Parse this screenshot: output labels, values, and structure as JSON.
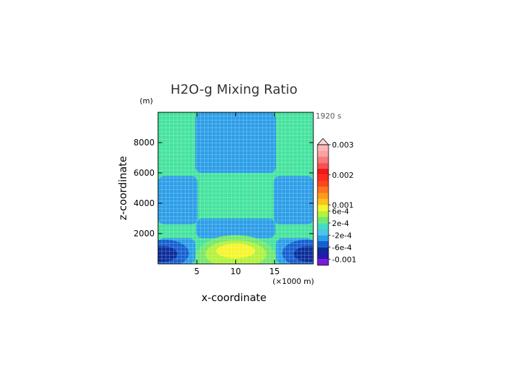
{
  "chart_data": {
    "type": "heatmap",
    "title": "H2O-g Mixing Ratio",
    "y_unit_label": "(m)",
    "time_label": "1920 s",
    "xlabel": "x-coordinate",
    "x_unit_label": "(×1000 m)",
    "ylabel": "z-coordinate",
    "xlim": [
      0,
      20
    ],
    "ylim": [
      0,
      10000
    ],
    "x_ticks": [
      {
        "value": 5,
        "label": "5"
      },
      {
        "value": 10,
        "label": "10"
      },
      {
        "value": 15,
        "label": "15"
      }
    ],
    "y_ticks": [
      {
        "value": 2000,
        "label": "2000"
      },
      {
        "value": 4000,
        "label": "4000"
      },
      {
        "value": 6000,
        "label": "6000"
      },
      {
        "value": 8000,
        "label": "8000"
      }
    ],
    "grid": true,
    "background_value": 0.0001,
    "regions": [
      {
        "shape": "rect",
        "name": "upper-central-column",
        "x": [
          4.8,
          15.2
        ],
        "z": [
          6000,
          10000
        ],
        "value": -0.0002,
        "color": "#2c9ee8"
      },
      {
        "shape": "rect",
        "name": "mid-left-block",
        "x": [
          0,
          5.1
        ],
        "z": [
          2600,
          5800
        ],
        "value": -0.0002,
        "color": "#2c9ee8"
      },
      {
        "shape": "rect",
        "name": "mid-right-block",
        "x": [
          14.9,
          20
        ],
        "z": [
          2600,
          5800
        ],
        "value": -0.0002,
        "color": "#2c9ee8"
      },
      {
        "shape": "rect",
        "name": "low-central-block",
        "x": [
          4.9,
          15.1
        ],
        "z": [
          1700,
          3000
        ],
        "value": -0.0002,
        "color": "#2c9ee8"
      },
      {
        "shape": "rect",
        "name": "low-left-corner",
        "x": [
          0,
          4.8
        ],
        "z": [
          0,
          1700
        ],
        "value": -0.0002,
        "color": "#2c9ee8"
      },
      {
        "shape": "rect",
        "name": "low-right-corner",
        "x": [
          15.2,
          20
        ],
        "z": [
          0,
          1700
        ],
        "value": -0.0002,
        "color": "#2c9ee8"
      },
      {
        "shape": "ellipse",
        "name": "left-minimum-outer",
        "cx": 0.8,
        "cz": 700,
        "rx": 3.2,
        "rz": 900,
        "value": -0.0004,
        "color": "#1560d0"
      },
      {
        "shape": "ellipse",
        "name": "left-minimum-inner",
        "cx": 0.6,
        "cz": 650,
        "rx": 1.9,
        "rz": 520,
        "value": -0.0006,
        "color": "#0b2d9a"
      },
      {
        "shape": "ellipse",
        "name": "right-minimum-outer",
        "cx": 19.2,
        "cz": 700,
        "rx": 3.2,
        "rz": 900,
        "value": -0.0004,
        "color": "#1560d0"
      },
      {
        "shape": "ellipse",
        "name": "right-minimum-inner",
        "cx": 19.4,
        "cz": 650,
        "rx": 1.9,
        "rz": 520,
        "value": -0.0006,
        "color": "#0b2d9a"
      },
      {
        "shape": "ellipse",
        "name": "central-maximum-outer",
        "cx": 10,
        "cz": 450,
        "rx": 5.1,
        "rz": 1450,
        "value": 0.0002,
        "color": "#73e86e"
      },
      {
        "shape": "ellipse",
        "name": "central-maximum-middle",
        "cx": 10,
        "cz": 650,
        "rx": 3.9,
        "rz": 900,
        "value": 0.0004,
        "color": "#b2f23c"
      },
      {
        "shape": "ellipse",
        "name": "central-maximum-inner",
        "cx": 10,
        "cz": 850,
        "rx": 2.5,
        "rz": 480,
        "value": 0.0006,
        "color": "#f6f52c"
      }
    ],
    "colorbar": {
      "triangle_color": "#fcd8d8",
      "bins": [
        {
          "color": "#7a1ad8"
        },
        {
          "color": "#2a16b0"
        },
        {
          "color": "#0b2d9a"
        },
        {
          "color": "#1560d0"
        },
        {
          "color": "#2c9ee8"
        },
        {
          "color": "#4cc6e8"
        },
        {
          "color": "#44ddc0"
        },
        {
          "color": "#73e86e"
        },
        {
          "color": "#b2f23c"
        },
        {
          "color": "#f6f52c"
        },
        {
          "color": "#fcc21d"
        },
        {
          "color": "#fc9a1c"
        },
        {
          "color": "#fc7420"
        },
        {
          "color": "#fc4818"
        },
        {
          "color": "#fc2a20"
        },
        {
          "color": "#f01818"
        },
        {
          "color": "#f85050"
        },
        {
          "color": "#f87a7a"
        },
        {
          "color": "#f8a2a2"
        },
        {
          "color": "#fcb6b6"
        }
      ],
      "labels": [
        {
          "text": "0.003",
          "boundary": 20
        },
        {
          "text": "0.002",
          "boundary": 15
        },
        {
          "text": "0.001",
          "boundary": 10
        },
        {
          "text": "6e-4",
          "boundary": 9
        },
        {
          "text": "2e-4",
          "boundary": 7
        },
        {
          "text": "-2e-4",
          "boundary": 5
        },
        {
          "text": "-6e-4",
          "boundary": 3
        },
        {
          "text": "-0.001",
          "boundary": 1
        }
      ]
    },
    "colors": {
      "background_fill": "#44e39e",
      "grid_line": "#ffffff",
      "text": "#000000",
      "muted_text": "#555555"
    }
  }
}
